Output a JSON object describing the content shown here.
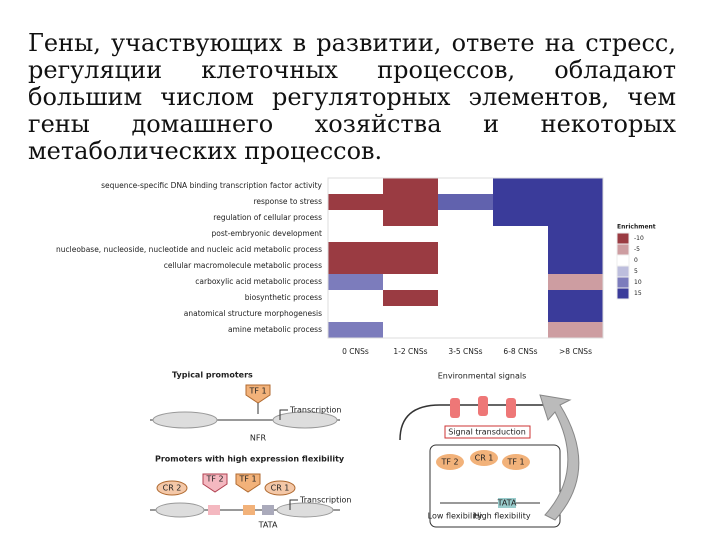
{
  "header": {
    "title": "Гены, участвующих в развитии, ответе на стресс, регуляции клеточных процессов, обладают большим числом регуляторных элементов, чем гены домашнего хозяйства и некоторых метаболических процессов."
  },
  "heatmap": {
    "type": "heatmap",
    "rows": [
      "sequence-specific DNA binding transcription factor activity",
      "response to stress",
      "regulation of cellular process",
      "post-embryonic development",
      "nucleobase, nucleoside, nucleotide and nucleic acid metabolic process",
      "cellular macromolecule metabolic process",
      "carboxylic acid metabolic process",
      "biosynthetic process",
      "anatomical structure morphogenesis",
      "amine metabolic process"
    ],
    "columns": [
      "0 CNSs",
      "1-2 CNSs",
      "3-5 CNSs",
      "6-8 CNSs",
      ">8 CNSs"
    ],
    "values": [
      [
        0,
        -10,
        0,
        15,
        15
      ],
      [
        -10,
        -10,
        12,
        15,
        15
      ],
      [
        0,
        -10,
        0,
        15,
        15
      ],
      [
        0,
        0,
        0,
        0,
        15
      ],
      [
        -10,
        -10,
        0,
        0,
        15
      ],
      [
        -10,
        -10,
        0,
        0,
        15
      ],
      [
        10,
        0,
        0,
        0,
        -5
      ],
      [
        0,
        -10,
        0,
        0,
        15
      ],
      [
        0,
        0,
        0,
        0,
        15
      ],
      [
        10,
        0,
        0,
        0,
        -5
      ]
    ],
    "legend_title": "Enrichment",
    "legend_ticks": [
      -10,
      -5,
      0,
      5,
      10,
      15
    ],
    "colors": {
      "negative": "#9a3b42",
      "zero": "#ffffff",
      "positive": "#3a3b9a"
    },
    "vmin": -10,
    "vmax": 15
  },
  "diagrams": {
    "left": {
      "title1": "Typical promoters",
      "tf1": "TF 1",
      "transcription1": "Transcription",
      "nfr": "NFR",
      "title2": "Promoters with high expression flexibility",
      "cr2": "CR 2",
      "tf2": "TF 2",
      "tf1b": "TF 1",
      "cr1": "CR 1",
      "transcription2": "Transcription",
      "tata": "TATA"
    },
    "right": {
      "title": "Environmental signals",
      "signal": "Signal transduction",
      "tf2": "TF 2",
      "cr1": "CR 1",
      "tf1": "TF 1",
      "tata": "TATA",
      "low": "Low flexibility",
      "high": "High flexibility"
    }
  }
}
